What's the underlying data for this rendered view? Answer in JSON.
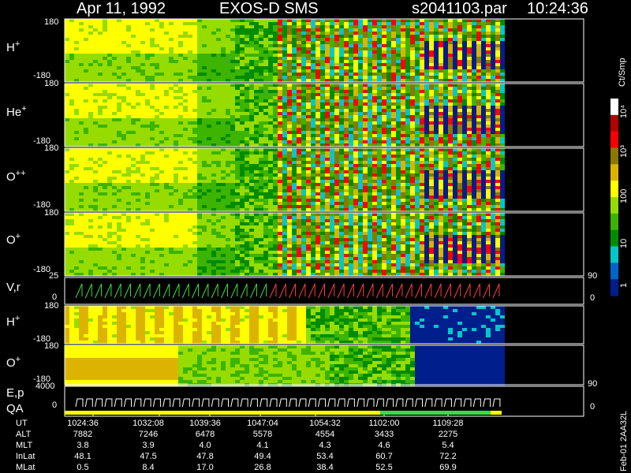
{
  "header": {
    "date": "Apr 11, 1992",
    "instrument": "EXOS-D SMS",
    "file": "s2041103.par",
    "time": "10:24:36"
  },
  "panels": [
    {
      "label": "H",
      "sup": "+",
      "top": "180",
      "bottom": "-180"
    },
    {
      "label": "He",
      "sup": "+",
      "top": "180",
      "bottom": "-180"
    },
    {
      "label": "O",
      "sup": "++",
      "top": "180",
      "bottom": "-180"
    },
    {
      "label": "O",
      "sup": "+",
      "top": "180",
      "bottom": "-180"
    },
    {
      "label": "V,r",
      "sup": "",
      "top": "25",
      "bottom": "0",
      "right_top": "90",
      "right_bottom": "0"
    },
    {
      "label": "H",
      "sup": "+",
      "top": "180",
      "bottom": "-180"
    },
    {
      "label": "O",
      "sup": "+",
      "top": "180",
      "bottom": "-180"
    },
    {
      "label": "E,p",
      "sup": "",
      "top": "4000",
      "bottom": "0",
      "right_top": "90",
      "right_bottom": "0"
    }
  ],
  "qa_label": "QA",
  "colorbar": {
    "unit": "Ct/Smp",
    "ticks": [
      "10⁴",
      "10³",
      "100",
      "10",
      "1"
    ],
    "colors": [
      "#ffffff",
      "#b40000",
      "#ff0000",
      "#8c7800",
      "#dcb400",
      "#ffff00",
      "#96dc00",
      "#3cb400",
      "#008c00",
      "#00c8c8",
      "#0064c8",
      "#001e8c"
    ]
  },
  "footer_side": "Feb-01  2AA32L",
  "table": {
    "rows": [
      {
        "name": "UT",
        "values": [
          "1024:36",
          "1032:08",
          "1039:36",
          "1047:04",
          "1054:32",
          "1102:00",
          "1109:28"
        ]
      },
      {
        "name": "ALT",
        "values": [
          "7882",
          "7246",
          "6478",
          "5578",
          "4554",
          "3433",
          "2275"
        ]
      },
      {
        "name": "MLT",
        "values": [
          "3.8",
          "3.9",
          "4.0",
          "4.1",
          "4.3",
          "4.6",
          "5.4"
        ]
      },
      {
        "name": "InLat",
        "values": [
          "48.1",
          "47.5",
          "47.8",
          "49.4",
          "53.4",
          "60.7",
          "72.2"
        ]
      },
      {
        "name": "MLat",
        "values": [
          "0.5",
          "8.4",
          "17.0",
          "26.8",
          "38.4",
          "52.5",
          "69.9"
        ]
      }
    ]
  },
  "chart_data": {
    "type": "heatmap",
    "title": "Apr 11, 1992   EXOS-D SMS",
    "x": [
      "1024:36",
      "1032:08",
      "1039:36",
      "1047:04",
      "1054:32",
      "1102:00",
      "1109:28"
    ],
    "xlabel": "UT",
    "series": [
      {
        "name": "H+",
        "ylim": [
          -180,
          180
        ]
      },
      {
        "name": "He+",
        "ylim": [
          -180,
          180
        ]
      },
      {
        "name": "O++",
        "ylim": [
          -180,
          180
        ]
      },
      {
        "name": "O+",
        "ylim": [
          -180,
          180
        ]
      },
      {
        "name": "V,r",
        "ylim": [
          0,
          25
        ]
      },
      {
        "name": "H+",
        "ylim": [
          -180,
          180
        ]
      },
      {
        "name": "O+",
        "ylim": [
          -180,
          180
        ]
      },
      {
        "name": "E,p",
        "ylim": [
          0,
          4000
        ]
      }
    ],
    "colorbar_label": "Ct/Smp",
    "colorbar_range": [
      "1",
      "10⁴"
    ]
  }
}
